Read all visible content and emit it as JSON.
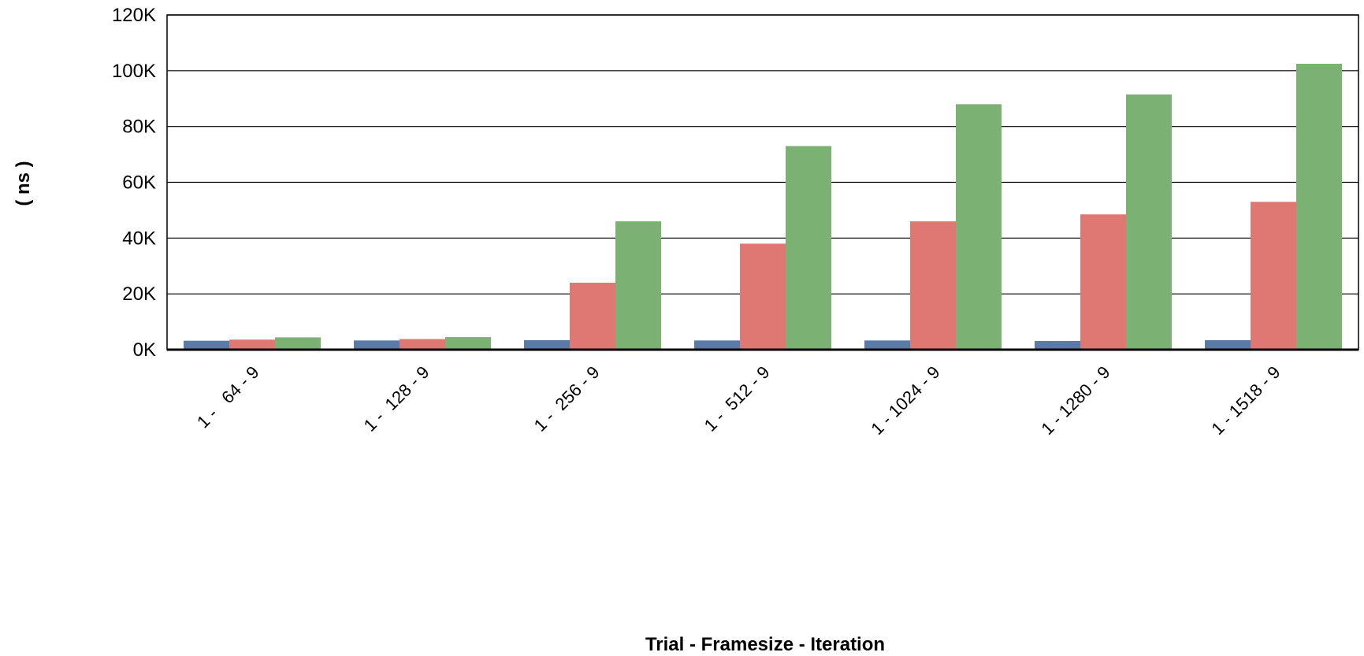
{
  "chart_data": {
    "type": "bar",
    "title": "",
    "xlabel": "Trial - Framesize - Iteration",
    "ylabel": "( ns )",
    "categories": [
      "1 -   64 - 9",
      "1 -  128 - 9",
      "1 -  256 - 9",
      "1 -  512 - 9",
      "1 - 1024 - 9",
      "1 - 1280 - 9",
      "1 - 1518 - 9"
    ],
    "series": [
      {
        "color": "#5b7aa6",
        "values": [
          3200,
          3300,
          3400,
          3300,
          3300,
          3100,
          3400
        ]
      },
      {
        "color": "#df7872",
        "values": [
          3600,
          3800,
          24000,
          38000,
          46000,
          48500,
          53000
        ]
      },
      {
        "color": "#7bb173",
        "values": [
          4400,
          4500,
          46000,
          73000,
          88000,
          91500,
          102500
        ]
      }
    ],
    "ylim": [
      0,
      120000
    ],
    "yticks": [
      0,
      20000,
      40000,
      60000,
      80000,
      100000,
      120000
    ],
    "ytick_labels": [
      "0K",
      "20K",
      "40K",
      "60K",
      "80K",
      "100K",
      "120K"
    ],
    "grid": true,
    "legend": "none"
  }
}
